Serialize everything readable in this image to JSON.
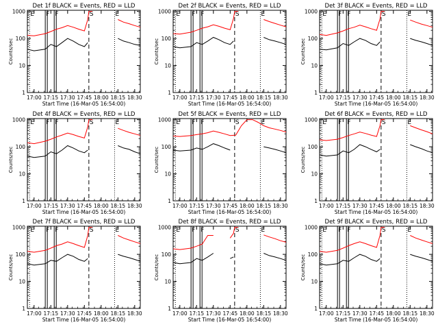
{
  "figure": {
    "colors": {
      "events": "#000000",
      "lld": "#ff0000",
      "axes": "#000000",
      "background": "#ffffff"
    },
    "ylabel": "Counts/sec",
    "xlabel": "Start Time (16-Mar-05 16:54:00)",
    "xticks": [
      "17:00",
      "17:15",
      "17:30",
      "17:45",
      "18:00",
      "18:15",
      "18:30"
    ],
    "yticks": [
      "1",
      "10",
      "100",
      "1000"
    ]
  },
  "chart_data": [
    {
      "type": "line",
      "title": "Det 1f BLACK = Events, RED = LLD",
      "xlabel": "Start Time (16-Mar-05 16:54:00)",
      "ylabel": "Counts/sec",
      "xlim": [
        "16:54",
        "18:35"
      ],
      "ylim": [
        1,
        1100
      ],
      "yscale": "log",
      "grid": false,
      "x": [
        "16:54",
        "17:00",
        "17:10",
        "17:15",
        "17:20",
        "17:25",
        "17:30",
        "17:35",
        "17:40",
        "17:45",
        "17:48",
        "17:49",
        "17:52",
        "17:55",
        "18:10",
        "18:12",
        "18:15",
        "18:20",
        "18:25",
        "18:30",
        "18:35"
      ],
      "series": [
        {
          "name": "Events",
          "values": [
            40,
            35,
            40,
            60,
            50,
            70,
            100,
            80,
            60,
            50,
            70,
            null,
            null,
            null,
            null,
            null,
            100,
            80,
            70,
            60,
            55
          ]
        },
        {
          "name": "LLD",
          "values": [
            130,
            125,
            150,
            180,
            220,
            250,
            300,
            260,
            220,
            190,
            500,
            1000,
            1000,
            null,
            null,
            null,
            500,
            400,
            350,
            300,
            260
          ]
        }
      ],
      "annotations": [
        {
          "text": "E",
          "x": "16:56"
        },
        {
          "text": "F",
          "x": "17:10"
        },
        {
          "text": "F",
          "x": "17:18"
        },
        {
          "text": "S",
          "x": "17:49"
        },
        {
          "text": "E",
          "x": "18:12"
        }
      ]
    },
    {
      "type": "line",
      "title": "Det 2f BLACK = Events, RED = LLD",
      "xlabel": "Start Time (16-Mar-05 16:54:00)",
      "ylabel": "Counts/sec",
      "xlim": [
        "16:54",
        "18:35"
      ],
      "ylim": [
        1,
        1100
      ],
      "yscale": "log",
      "grid": false,
      "x": [
        "16:54",
        "17:00",
        "17:10",
        "17:15",
        "17:20",
        "17:25",
        "17:30",
        "17:35",
        "17:40",
        "17:45",
        "17:48",
        "17:49",
        "17:52",
        "17:55",
        "18:10",
        "18:12",
        "18:15",
        "18:20",
        "18:25",
        "18:30",
        "18:35"
      ],
      "series": [
        {
          "name": "Events",
          "values": [
            50,
            45,
            50,
            70,
            60,
            80,
            110,
            90,
            70,
            60,
            80,
            null,
            null,
            null,
            null,
            null,
            110,
            90,
            80,
            70,
            60
          ]
        },
        {
          "name": "LLD",
          "values": [
            150,
            145,
            170,
            200,
            240,
            270,
            320,
            280,
            240,
            210,
            550,
            1000,
            1000,
            null,
            null,
            null,
            500,
            420,
            360,
            310,
            270
          ]
        }
      ],
      "annotations": [
        {
          "text": "E",
          "x": "16:56"
        },
        {
          "text": "F",
          "x": "17:10"
        },
        {
          "text": "F",
          "x": "17:18"
        },
        {
          "text": "S",
          "x": "17:49"
        },
        {
          "text": "E",
          "x": "18:12"
        }
      ]
    },
    {
      "type": "line",
      "title": "Det 3f BLACK = Events, RED = LLD",
      "xlabel": "Start Time (16-Mar-05 16:54:00)",
      "ylabel": "Counts/sec",
      "xlim": [
        "16:54",
        "18:35"
      ],
      "ylim": [
        1,
        1100
      ],
      "yscale": "log",
      "grid": false,
      "x": [
        "16:54",
        "17:00",
        "17:10",
        "17:15",
        "17:20",
        "17:25",
        "17:30",
        "17:35",
        "17:40",
        "17:45",
        "17:48",
        "17:49",
        "17:52",
        "17:55",
        "18:10",
        "18:12",
        "18:15",
        "18:20",
        "18:25",
        "18:30",
        "18:35"
      ],
      "series": [
        {
          "name": "Events",
          "values": [
            40,
            38,
            45,
            65,
            55,
            75,
            100,
            85,
            65,
            55,
            75,
            null,
            null,
            null,
            null,
            null,
            100,
            85,
            75,
            65,
            55
          ]
        },
        {
          "name": "LLD",
          "values": [
            140,
            130,
            160,
            190,
            230,
            260,
            310,
            270,
            230,
            200,
            520,
            1000,
            1000,
            null,
            null,
            null,
            480,
            400,
            340,
            300,
            260
          ]
        }
      ],
      "annotations": [
        {
          "text": "E",
          "x": "16:56"
        },
        {
          "text": "F",
          "x": "17:10"
        },
        {
          "text": "F",
          "x": "17:18"
        },
        {
          "text": "S",
          "x": "17:49"
        },
        {
          "text": "E",
          "x": "18:12"
        }
      ]
    },
    {
      "type": "line",
      "title": "Det 4f BLACK = Events, RED = LLD",
      "xlabel": "Start Time (16-Mar-05 16:54:00)",
      "ylabel": "Counts/sec",
      "xlim": [
        "16:54",
        "18:35"
      ],
      "ylim": [
        1,
        1100
      ],
      "yscale": "log",
      "grid": false,
      "x": [
        "16:54",
        "17:00",
        "17:10",
        "17:15",
        "17:20",
        "17:25",
        "17:30",
        "17:35",
        "17:40",
        "17:45",
        "17:48",
        "17:49",
        "17:52",
        "17:55",
        "18:10",
        "18:12",
        "18:15",
        "18:20",
        "18:25",
        "18:30",
        "18:35"
      ],
      "series": [
        {
          "name": "Events",
          "values": [
            45,
            40,
            45,
            65,
            55,
            75,
            110,
            90,
            70,
            60,
            75,
            null,
            null,
            null,
            null,
            null,
            110,
            90,
            80,
            65,
            55
          ]
        },
        {
          "name": "LLD",
          "values": [
            140,
            130,
            160,
            190,
            230,
            270,
            320,
            280,
            240,
            210,
            540,
            1000,
            1000,
            null,
            null,
            null,
            480,
            400,
            340,
            300,
            260
          ]
        }
      ],
      "annotations": [
        {
          "text": "E",
          "x": "16:56"
        },
        {
          "text": "F",
          "x": "17:10"
        },
        {
          "text": "F",
          "x": "17:18"
        },
        {
          "text": "S",
          "x": "17:49"
        },
        {
          "text": "E",
          "x": "18:12"
        }
      ]
    },
    {
      "type": "line",
      "title": "Det 5f BLACK = Events, RED = LLD",
      "xlabel": "Start Time (16-Mar-05 16:54:00)",
      "ylabel": "Counts/sec",
      "xlim": [
        "16:54",
        "18:35"
      ],
      "ylim": [
        1,
        1100
      ],
      "yscale": "log",
      "grid": false,
      "x": [
        "16:54",
        "17:00",
        "17:10",
        "17:15",
        "17:20",
        "17:25",
        "17:30",
        "17:35",
        "17:40",
        "17:45",
        "17:50",
        "17:55",
        "18:00",
        "18:05",
        "18:10",
        "18:15",
        "18:20",
        "18:25",
        "18:30",
        "18:35"
      ],
      "series": [
        {
          "name": "Events",
          "values": [
            75,
            70,
            75,
            90,
            80,
            100,
            130,
            110,
            90,
            75,
            null,
            null,
            null,
            null,
            null,
            100,
            90,
            80,
            70,
            60
          ]
        },
        {
          "name": "LLD",
          "values": [
            250,
            240,
            260,
            280,
            300,
            330,
            380,
            340,
            300,
            260,
            270,
            600,
            1000,
            1000,
            800,
            600,
            500,
            450,
            400,
            350
          ]
        }
      ],
      "annotations": [
        {
          "text": "E",
          "x": "16:56"
        },
        {
          "text": "F",
          "x": "17:10"
        },
        {
          "text": "F",
          "x": "17:18"
        },
        {
          "text": "S",
          "x": "17:49"
        },
        {
          "text": "E",
          "x": "18:12"
        }
      ]
    },
    {
      "type": "line",
      "title": "Det 6f BLACK = Events, RED = LLD",
      "xlabel": "Start Time (16-Mar-05 16:54:00)",
      "ylabel": "Counts/sec",
      "xlim": [
        "16:54",
        "18:35"
      ],
      "ylim": [
        1,
        1100
      ],
      "yscale": "log",
      "grid": false,
      "x": [
        "16:54",
        "17:00",
        "17:10",
        "17:15",
        "17:20",
        "17:25",
        "17:30",
        "17:35",
        "17:40",
        "17:45",
        "17:48",
        "17:49",
        "17:52",
        "17:55",
        "18:10",
        "18:12",
        "18:15",
        "18:20",
        "18:25",
        "18:30",
        "18:35"
      ],
      "series": [
        {
          "name": "Events",
          "values": [
            50,
            45,
            50,
            70,
            60,
            80,
            120,
            100,
            80,
            65,
            80,
            null,
            null,
            null,
            null,
            null,
            120,
            100,
            85,
            70,
            60
          ]
        },
        {
          "name": "LLD",
          "values": [
            180,
            170,
            190,
            220,
            260,
            300,
            350,
            310,
            270,
            240,
            600,
            1000,
            1000,
            null,
            null,
            null,
            600,
            500,
            420,
            360,
            300
          ]
        }
      ],
      "annotations": [
        {
          "text": "E",
          "x": "16:56"
        },
        {
          "text": "F",
          "x": "17:10"
        },
        {
          "text": "F",
          "x": "17:18"
        },
        {
          "text": "S",
          "x": "17:49"
        },
        {
          "text": "E",
          "x": "18:12"
        }
      ]
    },
    {
      "type": "line",
      "title": "Det 7f BLACK = Events, RED = LLD",
      "xlabel": "Start Time (16-Mar-05 16:54:00)",
      "ylabel": "Counts/sec",
      "xlim": [
        "16:54",
        "18:35"
      ],
      "ylim": [
        1,
        1100
      ],
      "yscale": "log",
      "grid": false,
      "x": [
        "16:54",
        "17:00",
        "17:10",
        "17:15",
        "17:20",
        "17:25",
        "17:30",
        "17:35",
        "17:40",
        "17:45",
        "17:48",
        "17:49",
        "17:52",
        "17:55",
        "18:10",
        "18:12",
        "18:15",
        "18:20",
        "18:25",
        "18:30",
        "18:35"
      ],
      "series": [
        {
          "name": "Events",
          "values": [
            45,
            40,
            45,
            60,
            55,
            75,
            100,
            85,
            65,
            55,
            70,
            null,
            null,
            null,
            null,
            null,
            100,
            85,
            75,
            65,
            55
          ]
        },
        {
          "name": "LLD",
          "values": [
            130,
            120,
            140,
            170,
            210,
            240,
            290,
            250,
            210,
            180,
            500,
            1000,
            1000,
            null,
            null,
            null,
            500,
            400,
            340,
            290,
            250
          ]
        }
      ],
      "annotations": [
        {
          "text": "E",
          "x": "16:56"
        },
        {
          "text": "F",
          "x": "17:10"
        },
        {
          "text": "F",
          "x": "17:18"
        },
        {
          "text": "S",
          "x": "17:49"
        },
        {
          "text": "E",
          "x": "18:12"
        }
      ]
    },
    {
      "type": "line",
      "title": "Det 8f BLACK = Events, RED = LLD",
      "xlabel": "Start Time (16-Mar-05 16:54:00)",
      "ylabel": "Counts/sec",
      "xlim": [
        "16:54",
        "18:35"
      ],
      "ylim": [
        1,
        1100
      ],
      "yscale": "log",
      "grid": false,
      "x": [
        "16:54",
        "17:00",
        "17:10",
        "17:15",
        "17:20",
        "17:25",
        "17:30",
        "17:35",
        "17:40",
        "17:45",
        "17:48",
        "17:49",
        "17:52",
        "17:55",
        "18:10",
        "18:12",
        "18:15",
        "18:20",
        "18:25",
        "18:30",
        "18:35"
      ],
      "series": [
        {
          "name": "Events",
          "values": [
            50,
            45,
            50,
            70,
            60,
            80,
            110,
            null,
            null,
            70,
            80,
            null,
            null,
            null,
            null,
            null,
            110,
            90,
            80,
            70,
            60
          ]
        },
        {
          "name": "LLD",
          "values": [
            160,
            150,
            170,
            200,
            240,
            500,
            500,
            null,
            null,
            400,
            600,
            1000,
            1000,
            null,
            null,
            null,
            520,
            440,
            380,
            320,
            280
          ]
        }
      ],
      "annotations": [
        {
          "text": "E",
          "x": "16:56"
        },
        {
          "text": "F",
          "x": "17:10"
        },
        {
          "text": "F",
          "x": "17:18"
        },
        {
          "text": "S",
          "x": "17:49"
        },
        {
          "text": "E",
          "x": "18:12"
        }
      ]
    },
    {
      "type": "line",
      "title": "Det 9f BLACK = Events, RED = LLD",
      "xlabel": "Start Time (16-Mar-05 16:54:00)",
      "ylabel": "Counts/sec",
      "xlim": [
        "16:54",
        "18:35"
      ],
      "ylim": [
        1,
        1100
      ],
      "yscale": "log",
      "grid": false,
      "x": [
        "16:54",
        "17:00",
        "17:10",
        "17:15",
        "17:20",
        "17:25",
        "17:30",
        "17:35",
        "17:40",
        "17:45",
        "17:48",
        "17:49",
        "17:52",
        "17:55",
        "18:10",
        "18:12",
        "18:15",
        "18:20",
        "18:25",
        "18:30",
        "18:35"
      ],
      "series": [
        {
          "name": "Events",
          "values": [
            45,
            40,
            45,
            60,
            55,
            75,
            100,
            85,
            65,
            55,
            70,
            null,
            null,
            null,
            null,
            null,
            100,
            85,
            75,
            65,
            55
          ]
        },
        {
          "name": "LLD",
          "values": [
            130,
            120,
            140,
            170,
            210,
            250,
            290,
            250,
            210,
            180,
            500,
            1000,
            1000,
            null,
            null,
            null,
            500,
            400,
            340,
            290,
            250
          ]
        }
      ],
      "annotations": [
        {
          "text": "E",
          "x": "16:56"
        },
        {
          "text": "F",
          "x": "17:10"
        },
        {
          "text": "F",
          "x": "17:18"
        },
        {
          "text": "S",
          "x": "17:49"
        },
        {
          "text": "E",
          "x": "18:12"
        }
      ]
    }
  ]
}
